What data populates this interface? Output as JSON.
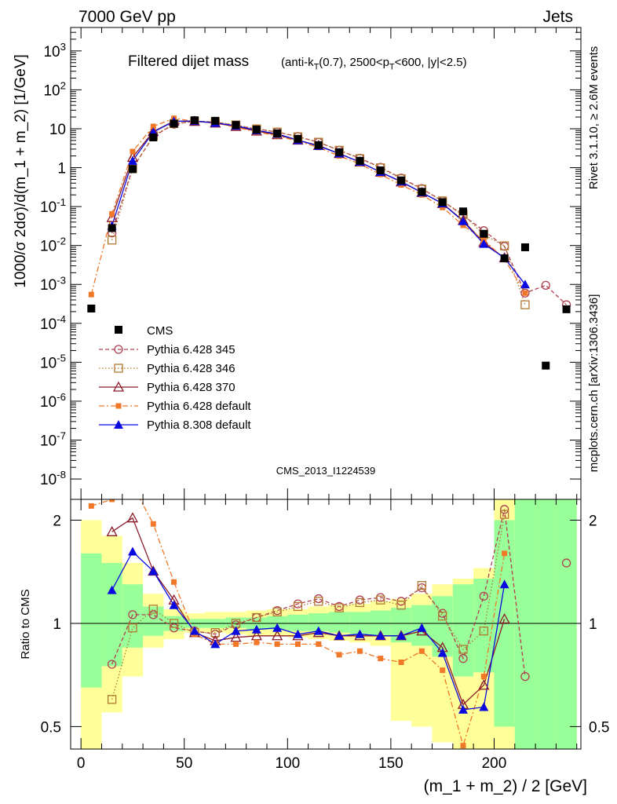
{
  "header": {
    "left": "7000 GeV pp",
    "right": "Jets"
  },
  "side_labels": {
    "version": "Rivet 3.1.10, ≥ 2.6M events",
    "source": "mcplots.cern.ch [arXiv:1306.3436]"
  },
  "chart_data": {
    "type": "line",
    "title": "Filtered dijet mass",
    "title_detail": "(anti-k_T(0.7), 2500<p_T<600, |y|<2.5)",
    "watermark": "CMS_2013_I1224539",
    "xlabel": "(m_1 + m_2) / 2 [GeV]",
    "ylabel": "1000/σ 2dσ)/d(m_1 + m_2) [1/GeV]",
    "ratio_ylabel": "Ratio to CMS",
    "xlim": [
      -5,
      242
    ],
    "ylim": [
      3e-09,
      4000
    ],
    "ratio_ylim": [
      0.43,
      2.3
    ],
    "log_y": true,
    "x_ticks": [
      "0",
      "50",
      "100",
      "150",
      "200"
    ],
    "y_ticks": [
      "10^{-8}",
      "10^{-7}",
      "10^{-6}",
      "10^{-5}",
      "10^{-4}",
      "10^{-3}",
      "10^{-2}",
      "10^{-1}",
      "1",
      "10",
      "10^{2}",
      "10^{3}"
    ],
    "ratio_ticks": [
      "0.5",
      "1",
      "2"
    ],
    "x": [
      5,
      15,
      25,
      35,
      45,
      55,
      65,
      75,
      85,
      95,
      105,
      115,
      125,
      135,
      145,
      155,
      165,
      175,
      185,
      195,
      205,
      215,
      225,
      235
    ],
    "data": {
      "name": "CMS",
      "values": [
        0.00024,
        0.028,
        0.92,
        6.0,
        13.5,
        16.5,
        16.0,
        12.5,
        9.5,
        7.6,
        5.5,
        3.8,
        2.5,
        1.5,
        0.85,
        0.47,
        0.24,
        0.13,
        0.075,
        0.02,
        0.0047,
        0.009,
        8.2e-06,
        0.00023
      ]
    },
    "series": [
      {
        "name": "Pythia 6.428 345",
        "color": "#b04050",
        "marker": "circle",
        "dash": "5,3",
        "values": [
          null,
          0.021,
          0.98,
          6.3,
          13.1,
          15.7,
          14.9,
          12.1,
          9.9,
          8.2,
          6.3,
          4.5,
          2.8,
          1.75,
          1.02,
          0.54,
          0.29,
          0.14,
          0.059,
          0.024,
          0.0095,
          0.0006,
          0.00095,
          0.0003
        ]
      },
      {
        "name": "Pythia 6.428 346",
        "color": "#b07830",
        "marker": "square-open",
        "dash": "1.5,2.5",
        "values": [
          null,
          0.0138,
          0.94,
          6.6,
          13.6,
          15.6,
          14.9,
          12.5,
          9.9,
          8.2,
          6.2,
          4.5,
          2.8,
          1.7,
          0.99,
          0.52,
          0.28,
          0.14,
          0.063,
          0.019,
          0.0098,
          0.0003,
          null,
          null
        ]
      },
      {
        "name": "Pythia 6.428 370",
        "color": "#8b1a2a",
        "marker": "triangle-open",
        "dash": "",
        "values": [
          null,
          0.052,
          1.85,
          8.5,
          15.7,
          15.5,
          14.0,
          11.4,
          8.7,
          7.0,
          5.1,
          3.7,
          2.3,
          1.4,
          0.77,
          0.43,
          0.23,
          0.12,
          0.044,
          0.012,
          0.0048,
          null,
          null,
          null
        ]
      },
      {
        "name": "Pythia 6.428 default",
        "color": "#f07828",
        "marker": "square",
        "dash": "7,3,2,3",
        "values": [
          0.00055,
          0.065,
          2.6,
          11.5,
          18.5,
          15.5,
          14.0,
          10.9,
          8.3,
          6.6,
          4.8,
          3.3,
          2.0,
          1.25,
          0.67,
          0.36,
          0.2,
          0.095,
          0.033,
          0.014,
          0.0045,
          0.0006,
          null,
          null
        ]
      },
      {
        "name": "Pythia 8.308 default",
        "color": "#0a0ae0",
        "marker": "triangle",
        "dash": "",
        "values": [
          null,
          0.032,
          1.5,
          8.2,
          15.5,
          15.8,
          14.1,
          11.9,
          9.1,
          7.4,
          5.1,
          3.6,
          2.3,
          1.4,
          0.77,
          0.44,
          0.23,
          0.12,
          0.042,
          0.011,
          0.0048,
          0.001,
          null,
          null
        ]
      }
    ],
    "ratios": {
      "Pythia 6.428 345": [
        null,
        0.76,
        1.06,
        1.06,
        0.97,
        0.95,
        0.93,
        0.99,
        1.04,
        1.09,
        1.14,
        1.18,
        1.12,
        1.17,
        1.19,
        1.16,
        1.27,
        1.07,
        0.79,
        1.2,
        2.15,
        0.7,
        null,
        1.5
      ],
      "Pythia 6.428 346": [
        null,
        0.6,
        0.97,
        1.1,
        1.0,
        0.94,
        0.94,
        1.0,
        1.04,
        1.08,
        1.12,
        1.16,
        1.11,
        1.15,
        1.17,
        1.13,
        1.29,
        1.05,
        0.84,
        0.95,
        2.08,
        null,
        null,
        null
      ],
      "Pythia 6.428 370": [
        null,
        1.85,
        2.03,
        1.42,
        1.17,
        0.94,
        0.89,
        0.91,
        0.92,
        0.92,
        0.92,
        0.94,
        0.92,
        0.92,
        0.92,
        0.92,
        0.95,
        0.85,
        0.58,
        0.66,
        1.03,
        null,
        null,
        null
      ],
      "Pythia 6.428 default": [
        2.2,
        2.3,
        2.8,
        1.95,
        1.32,
        0.93,
        0.87,
        0.87,
        0.88,
        0.87,
        0.87,
        0.87,
        0.81,
        0.83,
        0.79,
        0.77,
        0.83,
        0.73,
        0.44,
        0.7,
        1.6,
        null,
        null,
        null
      ],
      "Pythia 8.308 default": [
        null,
        1.25,
        1.62,
        1.42,
        1.13,
        0.95,
        0.87,
        0.95,
        0.96,
        0.97,
        0.93,
        0.95,
        0.92,
        0.93,
        0.92,
        0.92,
        0.97,
        0.82,
        0.56,
        0.57,
        1.3,
        null,
        null,
        null
      ]
    },
    "band_inner": [
      [
        0.65,
        1.6
      ],
      [
        0.75,
        1.5
      ],
      [
        0.85,
        1.3
      ],
      [
        0.92,
        1.12
      ],
      [
        0.95,
        1.05
      ],
      [
        0.97,
        1.03
      ],
      [
        0.97,
        1.03
      ],
      [
        0.97,
        1.04
      ],
      [
        0.96,
        1.04
      ],
      [
        0.96,
        1.05
      ],
      [
        0.95,
        1.06
      ],
      [
        0.95,
        1.07
      ],
      [
        0.94,
        1.08
      ],
      [
        0.93,
        1.08
      ],
      [
        0.92,
        1.09
      ],
      [
        0.88,
        1.11
      ],
      [
        0.86,
        1.13
      ],
      [
        0.8,
        1.2
      ],
      [
        0.7,
        1.3
      ],
      [
        0.72,
        1.35
      ],
      [
        0.5,
        2.0
      ],
      [
        0.3,
        3.0
      ],
      [
        0.3,
        3.0
      ],
      [
        0.3,
        3.0
      ]
    ],
    "band_outer": [
      [
        0.4,
        2.0
      ],
      [
        0.55,
        1.8
      ],
      [
        0.7,
        1.5
      ],
      [
        0.85,
        1.22
      ],
      [
        0.9,
        1.1
      ],
      [
        0.94,
        1.07
      ],
      [
        0.94,
        1.08
      ],
      [
        0.93,
        1.08
      ],
      [
        0.92,
        1.09
      ],
      [
        0.92,
        1.1
      ],
      [
        0.91,
        1.1
      ],
      [
        0.9,
        1.12
      ],
      [
        0.89,
        1.13
      ],
      [
        0.88,
        1.14
      ],
      [
        0.86,
        1.16
      ],
      [
        0.52,
        1.18
      ],
      [
        0.5,
        1.22
      ],
      [
        0.45,
        1.3
      ],
      [
        0.4,
        1.35
      ],
      [
        0.4,
        1.45
      ],
      [
        0.3,
        2.5
      ],
      [
        0.3,
        3.0
      ],
      [
        0.3,
        3.0
      ],
      [
        0.3,
        3.0
      ]
    ]
  }
}
